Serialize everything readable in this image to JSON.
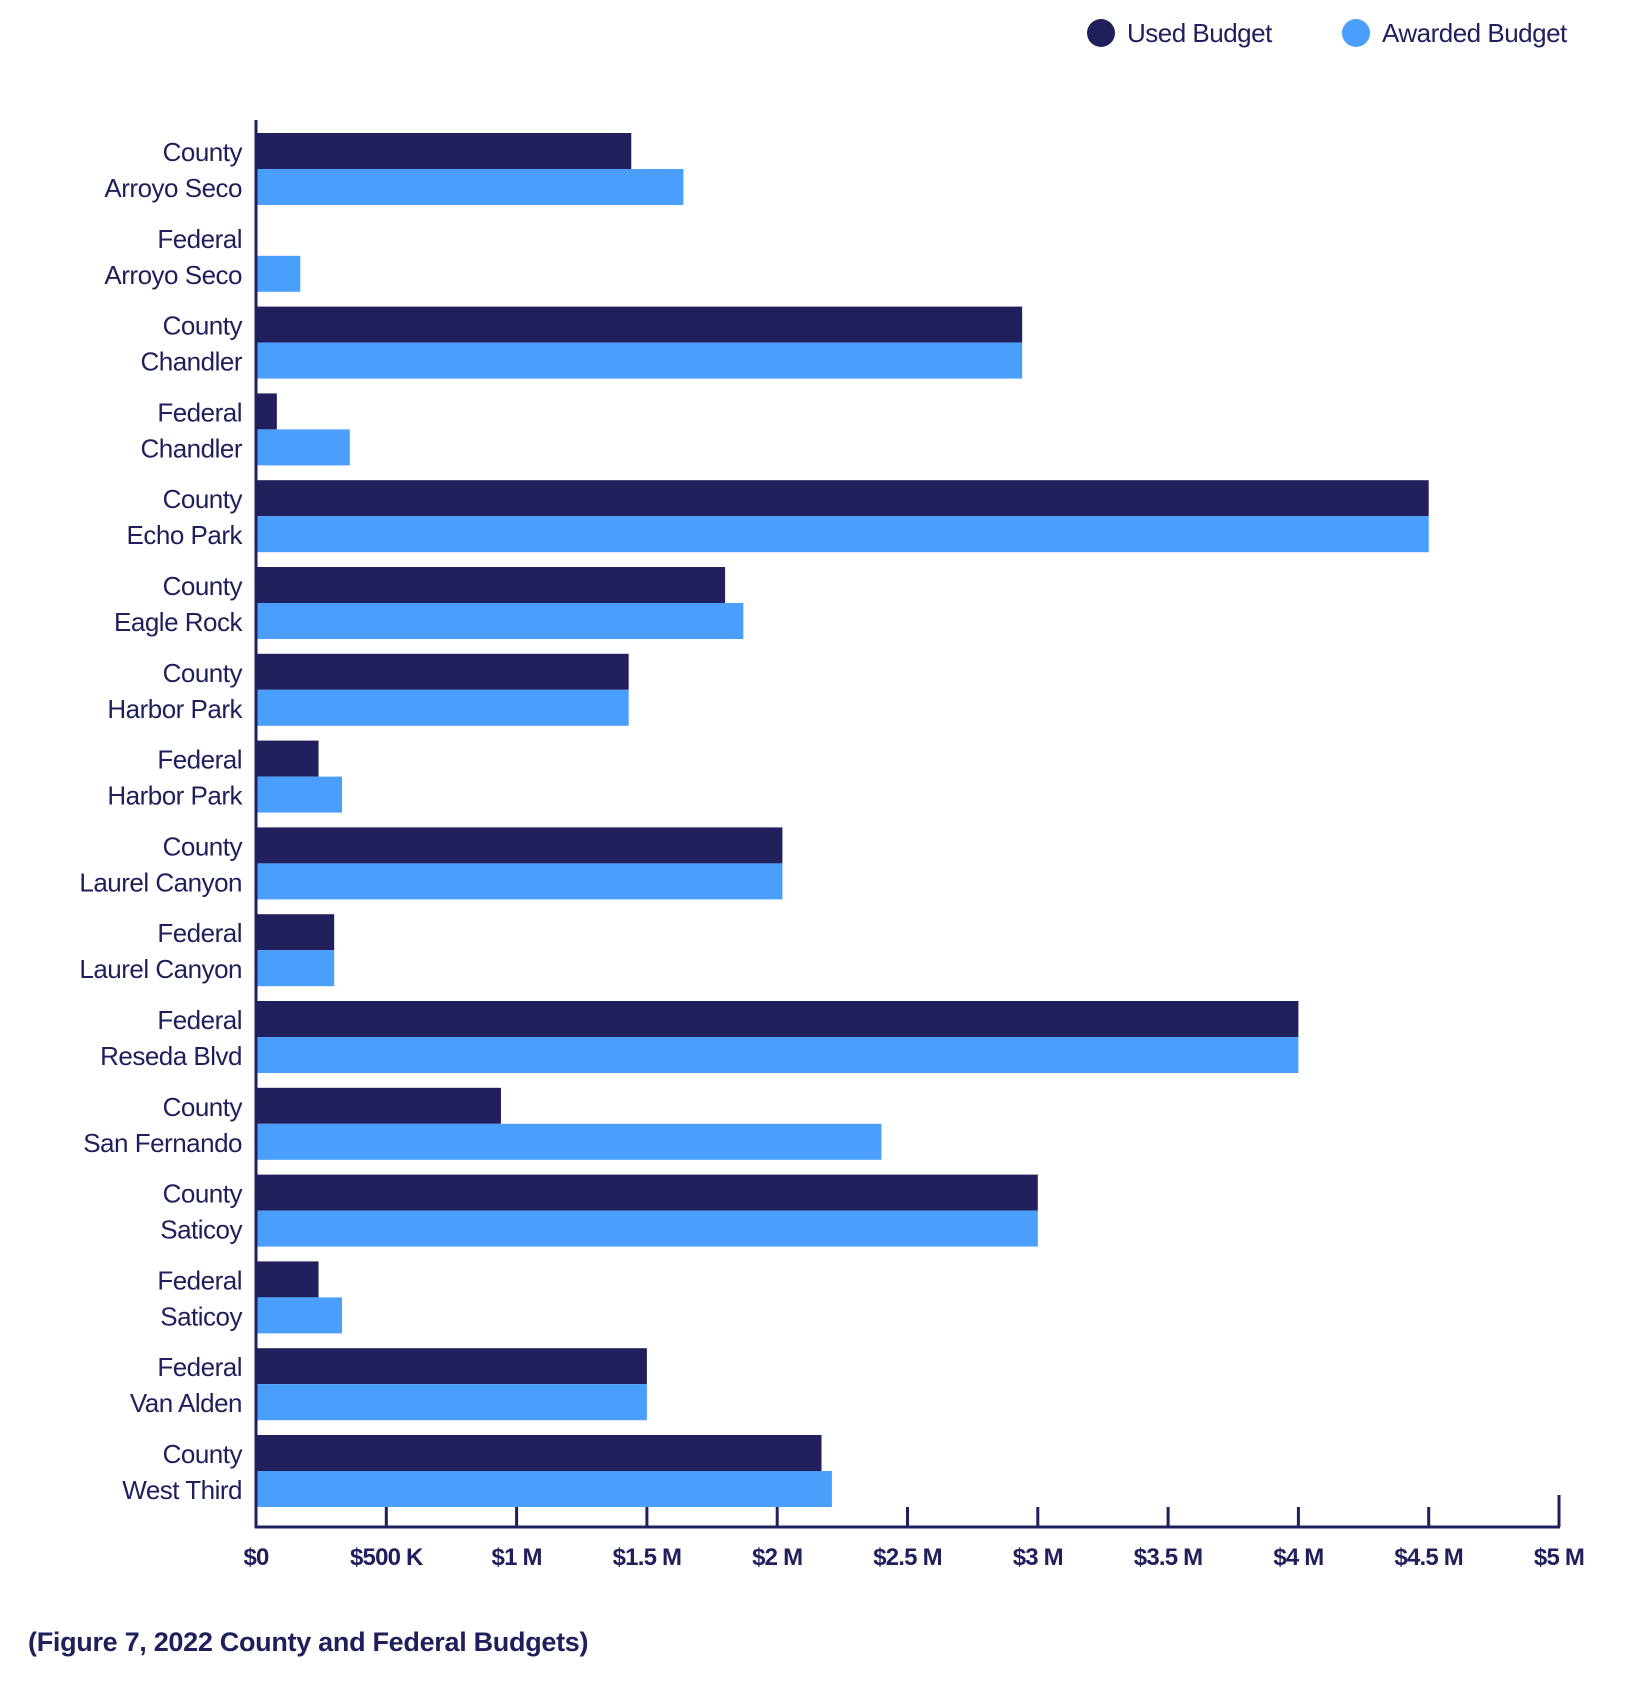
{
  "chart_data": {
    "type": "bar",
    "orientation": "horizontal",
    "categories": [
      [
        "County",
        "Arroyo Seco"
      ],
      [
        "Federal",
        "Arroyo Seco"
      ],
      [
        "County",
        "Chandler"
      ],
      [
        "Federal",
        "Chandler"
      ],
      [
        "County",
        "Echo Park"
      ],
      [
        "County",
        "Eagle Rock"
      ],
      [
        "County",
        "Harbor Park"
      ],
      [
        "Federal",
        "Harbor Park"
      ],
      [
        "County",
        "Laurel Canyon"
      ],
      [
        "Federal",
        "Laurel Canyon"
      ],
      [
        "Federal",
        "Reseda Blvd"
      ],
      [
        "County",
        "San Fernando"
      ],
      [
        "County",
        "Saticoy"
      ],
      [
        "Federal",
        "Saticoy"
      ],
      [
        "Federal",
        "Van Alden"
      ],
      [
        "County",
        "West Third"
      ]
    ],
    "series": [
      {
        "name": "Used Budget",
        "color": "#211f5c",
        "values": [
          1440000,
          0,
          2940000,
          80000,
          4500000,
          1800000,
          1430000,
          240000,
          2020000,
          300000,
          4000000,
          940000,
          3000000,
          240000,
          1500000,
          2170000
        ]
      },
      {
        "name": "Awarded Budget",
        "color": "#4a9ffd",
        "values": [
          1640000,
          170000,
          2940000,
          360000,
          4500000,
          1870000,
          1430000,
          330000,
          2020000,
          300000,
          4000000,
          2400000,
          3000000,
          330000,
          1500000,
          2210000
        ]
      }
    ],
    "xlim": [
      0,
      5000000
    ],
    "xticks": [
      0,
      500000,
      1000000,
      1500000,
      2000000,
      2500000,
      3000000,
      3500000,
      4000000,
      4500000,
      5000000
    ],
    "xtick_labels": [
      "$0",
      "$500 K",
      "$1 M",
      "$1.5 M",
      "$2 M",
      "$2.5 M",
      "$3 M",
      "$3.5 M",
      "$4 M",
      "$4.5 M",
      "$5 M"
    ],
    "legend_position": "top-right",
    "grid": false,
    "caption": "(Figure 7, 2022 County and Federal Budgets)",
    "axis_color": "#1f1f5c"
  }
}
